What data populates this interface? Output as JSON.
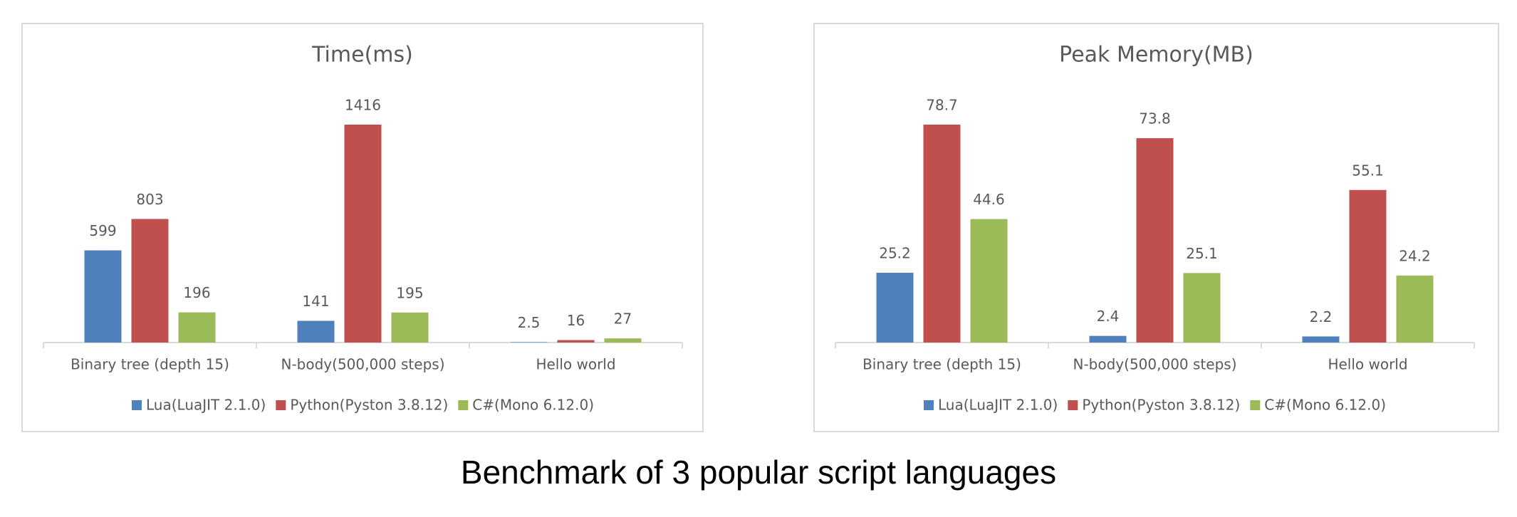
{
  "title": "Benchmark of 3 popular script languages",
  "chart_data": [
    {
      "type": "bar",
      "title": "Time(ms)",
      "categories": [
        "Binary tree (depth 15)",
        "N-body(500,000 steps)",
        "Hello world"
      ],
      "series": [
        {
          "name": "Lua(LuaJIT 2.1.0)",
          "color": "#4f81bd",
          "values": [
            599,
            141,
            2.5
          ]
        },
        {
          "name": "Python(Pyston 3.8.12)",
          "color": "#c0504d",
          "values": [
            803,
            1416,
            16
          ]
        },
        {
          "name": "C#(Mono 6.12.0)",
          "color": "#9bbb59",
          "values": [
            196,
            195,
            27
          ]
        }
      ]
    },
    {
      "type": "bar",
      "title": "Peak Memory(MB)",
      "categories": [
        "Binary tree (depth 15)",
        "N-body(500,000 steps)",
        "Hello world"
      ],
      "series": [
        {
          "name": "Lua(LuaJIT 2.1.0)",
          "color": "#4f81bd",
          "values": [
            25.2,
            2.4,
            2.2
          ]
        },
        {
          "name": "Python(Pyston 3.8.12)",
          "color": "#c0504d",
          "values": [
            78.7,
            73.8,
            55.1
          ]
        },
        {
          "name": "C#(Mono 6.12.0)",
          "color": "#9bbb59",
          "values": [
            44.6,
            25.1,
            24.2
          ]
        }
      ]
    }
  ]
}
